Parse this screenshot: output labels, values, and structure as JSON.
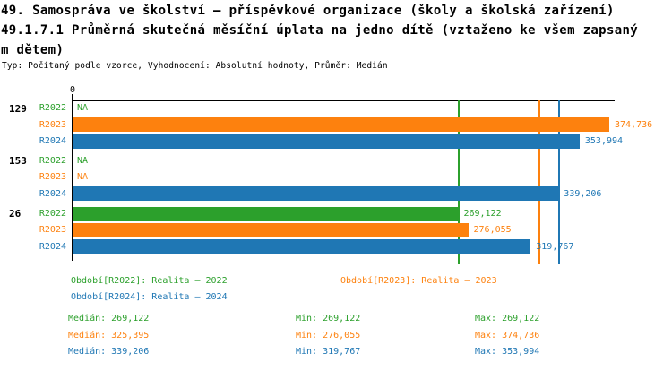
{
  "header": {
    "title_line1": "49. Samospráva ve školství – příspěvkové organizace (školy a školská zařízení)",
    "title_line2": "49.1.7.1 Průměrná skutečná měsíční úplata na jedno dítě (vztaženo ke všem zapsaný",
    "title_line3": "m dětem)",
    "meta_line": "Typ: Počítaný podle vzorce, Vyhodnocení: Absolutní hodnoty, Průměr: Medián"
  },
  "colors": {
    "r2022": "#2CA02C",
    "r2023": "#FD810E",
    "r2024": "#1F77B4",
    "axis": "#000000"
  },
  "chart_data": {
    "type": "bar",
    "orientation": "horizontal",
    "title": "49.1.7.1 Průměrná skutečná měsíční úplata na jedno dítě (vztaženo ke všem zapsaným dětem)",
    "x_axis": {
      "origin_label": "0",
      "xlim": [
        0,
        378500
      ],
      "grid": false
    },
    "na_label": "NA",
    "series_names": [
      "R2022",
      "R2023",
      "R2024"
    ],
    "groups": [
      {
        "label": "129",
        "bars": [
          {
            "series": "R2022",
            "value": null,
            "display": "NA"
          },
          {
            "series": "R2023",
            "value": 374736,
            "display": "374,736"
          },
          {
            "series": "R2024",
            "value": 353994,
            "display": "353,994"
          }
        ]
      },
      {
        "label": "153",
        "bars": [
          {
            "series": "R2022",
            "value": null,
            "display": "NA"
          },
          {
            "series": "R2023",
            "value": null,
            "display": "NA"
          },
          {
            "series": "R2024",
            "value": 339206,
            "display": "339,206"
          }
        ]
      },
      {
        "label": "26",
        "bars": [
          {
            "series": "R2022",
            "value": 269122,
            "display": "269,122"
          },
          {
            "series": "R2023",
            "value": 276055,
            "display": "276,055"
          },
          {
            "series": "R2024",
            "value": 319767,
            "display": "319,767"
          }
        ]
      }
    ],
    "median_lines": [
      {
        "series": "R2022",
        "value": 269122
      },
      {
        "series": "R2023",
        "value": 325395
      },
      {
        "series": "R2024",
        "value": 339206
      }
    ]
  },
  "legend": {
    "items": [
      {
        "label": "Období[R2022]: Realita – 2022",
        "color_key": "r2022",
        "col": 0,
        "row": 0
      },
      {
        "label": "Období[R2023]: Realita – 2023",
        "color_key": "r2023",
        "col": 1,
        "row": 0
      },
      {
        "label": "Období[R2024]: Realita – 2024",
        "color_key": "r2024",
        "col": 0,
        "row": 1
      }
    ]
  },
  "stats": {
    "rows": [
      {
        "color_key": "r2022",
        "median_label": "Medián: 269,122",
        "min_label": "Min: 269,122",
        "max_label": "Max: 269,122"
      },
      {
        "color_key": "r2023",
        "median_label": "Medián: 325,395",
        "min_label": "Min: 276,055",
        "max_label": "Max: 374,736"
      },
      {
        "color_key": "r2024",
        "median_label": "Medián: 339,206",
        "min_label": "Min: 319,767",
        "max_label": "Max: 353,994"
      }
    ]
  }
}
